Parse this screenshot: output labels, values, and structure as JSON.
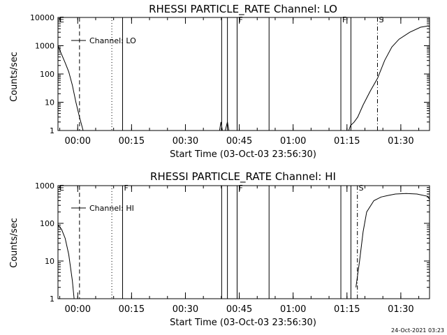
{
  "colors": {
    "background": "#ffffff",
    "foreground": "#000000"
  },
  "footer": {
    "timestamp": "24-Oct-2021 03:23"
  },
  "chart_data": [
    {
      "type": "line",
      "title": "RHESSI PARTICLE_RATE Channel: LO",
      "ylabel": "Counts/sec",
      "xlabel": "Start Time (03-Oct-03 23:56:30)",
      "y_scale": "log",
      "ylim": [
        1,
        10000
      ],
      "y_ticks": [
        1,
        10,
        100,
        1000,
        10000
      ],
      "y_tick_labels": [
        "1",
        "10",
        "100",
        "1000",
        "10000"
      ],
      "x_unit": "minutes after 03-Oct-03 23:56:30",
      "xlim": [
        -2,
        101.5
      ],
      "x_ticks": [
        3.5,
        18.5,
        33.5,
        48.5,
        63.5,
        78.5,
        93.5
      ],
      "x_tick_labels": [
        "00:00",
        "00:15",
        "00:30",
        "00:45",
        "01:00",
        "01:15",
        "01:30"
      ],
      "legend": {
        "label": "Channel: LO",
        "placement": "upper-left"
      },
      "series": [
        {
          "name": "Channel: LO",
          "segments": [
            [
              [
                -2,
                1000
              ],
              [
                -1,
                500
              ],
              [
                0,
                250
              ],
              [
                1,
                120
              ],
              [
                2,
                40
              ],
              [
                3,
                10
              ],
              [
                4,
                3
              ],
              [
                5,
                1
              ]
            ],
            [
              [
                43,
                1
              ],
              [
                43.4,
                2
              ],
              [
                43.8,
                1
              ]
            ],
            [
              [
                44.6,
                1
              ],
              [
                45.2,
                2
              ],
              [
                45.6,
                1
              ]
            ],
            [
              [
                79,
                1
              ],
              [
                79.5,
                1.5
              ],
              [
                80.5,
                2
              ],
              [
                81.5,
                3
              ],
              [
                83,
                8
              ],
              [
                85,
                25
              ],
              [
                87,
                70
              ],
              [
                89,
                300
              ],
              [
                91,
                900
              ],
              [
                93,
                1700
              ],
              [
                96,
                3000
              ],
              [
                99,
                4500
              ],
              [
                101,
                5000
              ],
              [
                103,
                4800
              ],
              [
                104.5,
                4000
              ]
            ]
          ]
        }
      ],
      "markers": [
        {
          "x": -2,
          "label": "E",
          "style": "dash"
        },
        {
          "x": 4,
          "label": "",
          "style": "dash"
        },
        {
          "x": 13,
          "label": "",
          "style": "dot"
        },
        {
          "x": 16,
          "label": "",
          "style": "solid"
        },
        {
          "x": 43.6,
          "label": "",
          "style": "solid"
        },
        {
          "x": 45.2,
          "label": "",
          "style": "solid"
        },
        {
          "x": 47.9,
          "label": "F",
          "style": "solid"
        },
        {
          "x": 56.8,
          "label": "",
          "style": "solid"
        },
        {
          "x": 76.8,
          "label": "F",
          "style": "solid"
        },
        {
          "x": 79.6,
          "label": "",
          "style": "solid"
        },
        {
          "x": 87,
          "label": "S",
          "style": "dashdot"
        },
        {
          "x": 104.6,
          "label": "",
          "style": "dashdot"
        }
      ]
    },
    {
      "type": "line",
      "title": "RHESSI PARTICLE_RATE Channel: HI",
      "ylabel": "Counts/sec",
      "xlabel": "Start Time (03-Oct-03 23:56:30)",
      "y_scale": "log",
      "ylim": [
        1,
        1000
      ],
      "y_ticks": [
        1,
        10,
        100,
        1000
      ],
      "y_tick_labels": [
        "1",
        "10",
        "100",
        "1000"
      ],
      "x_unit": "minutes after 03-Oct-03 23:56:30",
      "xlim": [
        -2,
        101.5
      ],
      "x_ticks": [
        3.5,
        18.5,
        33.5,
        48.5,
        63.5,
        78.5,
        93.5
      ],
      "x_tick_labels": [
        "00:00",
        "00:15",
        "00:30",
        "00:45",
        "01:00",
        "01:15",
        "01:30"
      ],
      "legend": {
        "label": "Channel: HI",
        "placement": "upper-left"
      },
      "series": [
        {
          "name": "Channel: HI",
          "segments": [
            [
              [
                -2,
                90
              ],
              [
                -1,
                70
              ],
              [
                0,
                40
              ],
              [
                1,
                15
              ],
              [
                2,
                3
              ],
              [
                2.5,
                1
              ]
            ],
            [
              [
                81,
                2
              ],
              [
                82,
                10
              ],
              [
                83,
                60
              ],
              [
                84,
                200
              ],
              [
                86,
                400
              ],
              [
                88,
                500
              ],
              [
                90,
                550
              ],
              [
                92,
                600
              ],
              [
                95,
                620
              ],
              [
                98,
                600
              ],
              [
                101,
                520
              ],
              [
                102,
                430
              ]
            ]
          ]
        }
      ],
      "markers": [
        {
          "x": -2,
          "label": "E",
          "style": "dash"
        },
        {
          "x": 4,
          "label": "",
          "style": "dash"
        },
        {
          "x": 13,
          "label": "",
          "style": "dot"
        },
        {
          "x": 16,
          "label": "F",
          "style": "solid"
        },
        {
          "x": 43.6,
          "label": "",
          "style": "solid"
        },
        {
          "x": 45.2,
          "label": "",
          "style": "solid"
        },
        {
          "x": 47.9,
          "label": "F",
          "style": "solid"
        },
        {
          "x": 56.8,
          "label": "",
          "style": "solid"
        },
        {
          "x": 76.8,
          "label": "",
          "style": "solid"
        },
        {
          "x": 79.6,
          "label": "",
          "style": "solid"
        },
        {
          "x": 81.4,
          "label": "S",
          "style": "dashdot"
        },
        {
          "x": 102.1,
          "label": "",
          "style": "dashdot"
        }
      ]
    }
  ]
}
